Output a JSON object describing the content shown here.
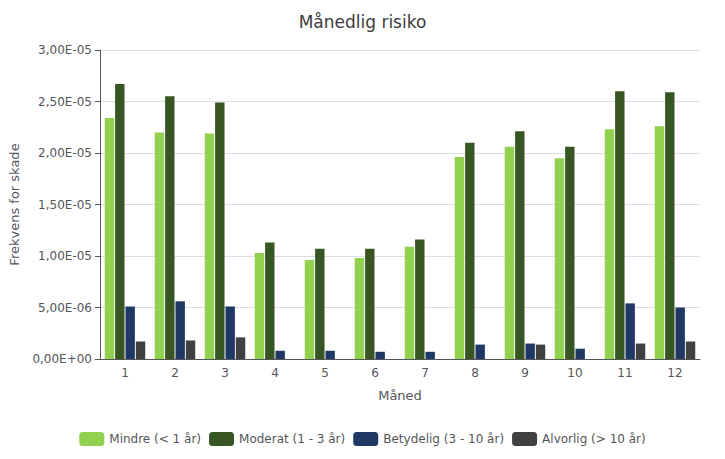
{
  "chart_data": {
    "type": "bar",
    "title": "Månedlig risiko",
    "x_label": "Måned",
    "y_label": "Frekvens for skade",
    "categories": [
      "1",
      "2",
      "3",
      "4",
      "5",
      "6",
      "7",
      "8",
      "9",
      "10",
      "11",
      "12"
    ],
    "series": [
      {
        "name": "Mindre (< 1 år)",
        "color": "#92d050",
        "values": [
          2.34e-05,
          2.2e-05,
          2.19e-05,
          1.03e-05,
          9.6e-06,
          9.8e-06,
          1.09e-05,
          1.96e-05,
          2.06e-05,
          1.95e-05,
          2.23e-05,
          2.26e-05
        ]
      },
      {
        "name": "Moderat (1 - 3 år)",
        "color": "#375623",
        "values": [
          2.67e-05,
          2.55e-05,
          2.49e-05,
          1.13e-05,
          1.07e-05,
          1.07e-05,
          1.16e-05,
          2.1e-05,
          2.21e-05,
          2.06e-05,
          2.6e-05,
          2.59e-05
        ]
      },
      {
        "name": "Betydelig (3 - 10 år)",
        "color": "#1f3864",
        "values": [
          5.1e-06,
          5.6e-06,
          5.1e-06,
          8e-07,
          8e-07,
          7e-07,
          7e-07,
          1.4e-06,
          1.5e-06,
          1e-06,
          5.4e-06,
          5e-06
        ]
      },
      {
        "name": "Alvorlig (> 10 år)",
        "color": "#404040",
        "values": [
          1.7e-06,
          1.8e-06,
          2.1e-06,
          0.0,
          0.0,
          0.0,
          0.0,
          0.0,
          1.4e-06,
          0.0,
          1.5e-06,
          1.7e-06
        ]
      }
    ],
    "ylim": [
      0,
      3e-05
    ],
    "yticks": [
      {
        "value": 0,
        "label": "0,00E+00"
      },
      {
        "value": 5e-06,
        "label": "5,00E-06"
      },
      {
        "value": 1e-05,
        "label": "1,00E-05"
      },
      {
        "value": 1.5e-05,
        "label": "1,50E-05"
      },
      {
        "value": 2e-05,
        "label": "2,00E-05"
      },
      {
        "value": 2.5e-05,
        "label": "2,50E-05"
      },
      {
        "value": 3e-05,
        "label": "3,00E-05"
      }
    ],
    "grid": true,
    "legend": "bottom"
  }
}
